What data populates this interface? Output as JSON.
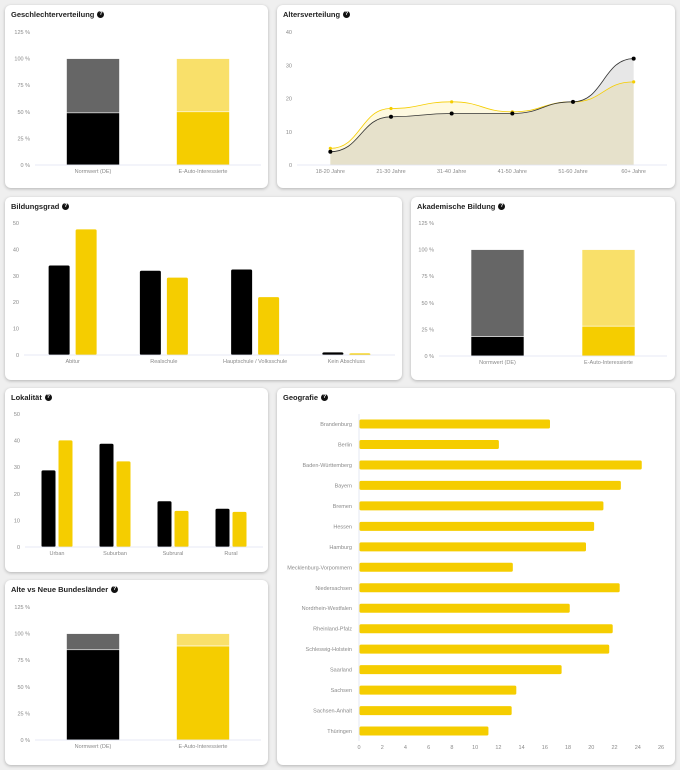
{
  "help_icon": "question-circle-icon",
  "colors": {
    "norm_dark": "#000000",
    "norm_light": "#666666",
    "ev_dark": "#f5cd00",
    "ev_light": "#f9e06a",
    "axis": "#dfe3f0"
  },
  "chart_data": [
    {
      "title": "Geschlechterverteilung",
      "type": "bar",
      "stacked": true,
      "categories": [
        "Normwert (DE)",
        "E-Auto-Interessierte"
      ],
      "series": [
        {
          "values": [
            49,
            50
          ]
        },
        {
          "values": [
            51,
            50
          ]
        }
      ],
      "ylim": [
        0,
        125
      ],
      "yticks": [
        "0 %",
        "25 %",
        "50 %",
        "75 %",
        "100 %",
        "125 %"
      ],
      "grid": false
    },
    {
      "title": "Altersverteilung",
      "type": "area",
      "categories": [
        "18-20 Jahre",
        "21-30 Jahre",
        "31-40 Jahre",
        "41-50 Jahre",
        "51-60 Jahre",
        "60+ Jahre"
      ],
      "series": [
        {
          "values": [
            4,
            14.5,
            15.5,
            15.5,
            19,
            32
          ]
        },
        {
          "values": [
            5,
            17,
            19,
            16,
            19,
            25
          ]
        }
      ],
      "ylim": [
        0,
        40
      ],
      "yticks": [
        "0",
        "10",
        "20",
        "30",
        "40"
      ],
      "grid": false
    },
    {
      "title": "Bildungsgrad",
      "type": "bar",
      "categories": [
        "Abitur",
        "Realschule",
        "Hauptschule / Volksschule",
        "Kein Abschluss"
      ],
      "series": [
        {
          "values": [
            33.9,
            31.9,
            32.4,
            1.0
          ]
        },
        {
          "values": [
            47.6,
            29.3,
            21.9,
            0.6
          ]
        }
      ],
      "ylim": [
        0,
        50
      ],
      "yticks": [
        "0",
        "10",
        "20",
        "30",
        "40",
        "50"
      ],
      "grid": false
    },
    {
      "title": "Akademische Bildung",
      "type": "bar",
      "stacked": true,
      "categories": [
        "Normwert (DE)",
        "E-Auto-Interessierte"
      ],
      "series": [
        {
          "values": [
            18.3,
            28
          ]
        },
        {
          "values": [
            81.7,
            72
          ]
        }
      ],
      "ylim": [
        0,
        125
      ],
      "yticks": [
        "0 %",
        "25 %",
        "50 %",
        "75 %",
        "100 %",
        "125 %"
      ],
      "grid": false
    },
    {
      "title": "Lokalität",
      "type": "bar",
      "categories": [
        "Urban",
        "Suburban",
        "Subrural",
        "Rural"
      ],
      "series": [
        {
          "values": [
            28.8,
            38.8,
            17.2,
            14.4
          ]
        },
        {
          "values": [
            40.1,
            32.2,
            13.6,
            13.2
          ]
        }
      ],
      "ylim": [
        0,
        50
      ],
      "yticks": [
        "0",
        "10",
        "20",
        "30",
        "40",
        "50"
      ],
      "grid": false
    },
    {
      "title": "Geografie",
      "type": "bar",
      "orientation": "horizontal",
      "categories": [
        "Brandenburg",
        "Berlin",
        "Baden-Württemberg",
        "Bayern",
        "Bremen",
        "Hessen",
        "Hamburg",
        "Mecklenburg-Vorpommern",
        "Niedersachsen",
        "Nordrhein-Westfalen",
        "Rheinland-Pfalz",
        "Schleswig-Holstein",
        "Saarland",
        "Sachsen",
        "Sachsen-Anhalt",
        "Thüringen"
      ],
      "series": [
        {
          "values": [
            16.4,
            12.0,
            24.3,
            22.5,
            21.0,
            20.2,
            19.5,
            13.2,
            22.4,
            18.1,
            21.8,
            21.5,
            17.4,
            13.5,
            13.1,
            11.1
          ]
        }
      ],
      "xlim": [
        0,
        26
      ],
      "xticks": [
        "0",
        "2",
        "4",
        "6",
        "8",
        "10",
        "12",
        "14",
        "16",
        "18",
        "20",
        "22",
        "24",
        "26"
      ],
      "grid": false
    },
    {
      "title": "Alte vs Neue Bundesländer",
      "type": "bar",
      "stacked": true,
      "categories": [
        "Normwert (DE)",
        "E-Auto-Interessierte"
      ],
      "series": [
        {
          "values": [
            84.8,
            88.3
          ]
        },
        {
          "values": [
            15.2,
            11.7
          ]
        }
      ],
      "ylim": [
        0,
        125
      ],
      "yticks": [
        "0 %",
        "25 %",
        "50 %",
        "75 %",
        "100 %",
        "125 %"
      ],
      "grid": false
    }
  ]
}
